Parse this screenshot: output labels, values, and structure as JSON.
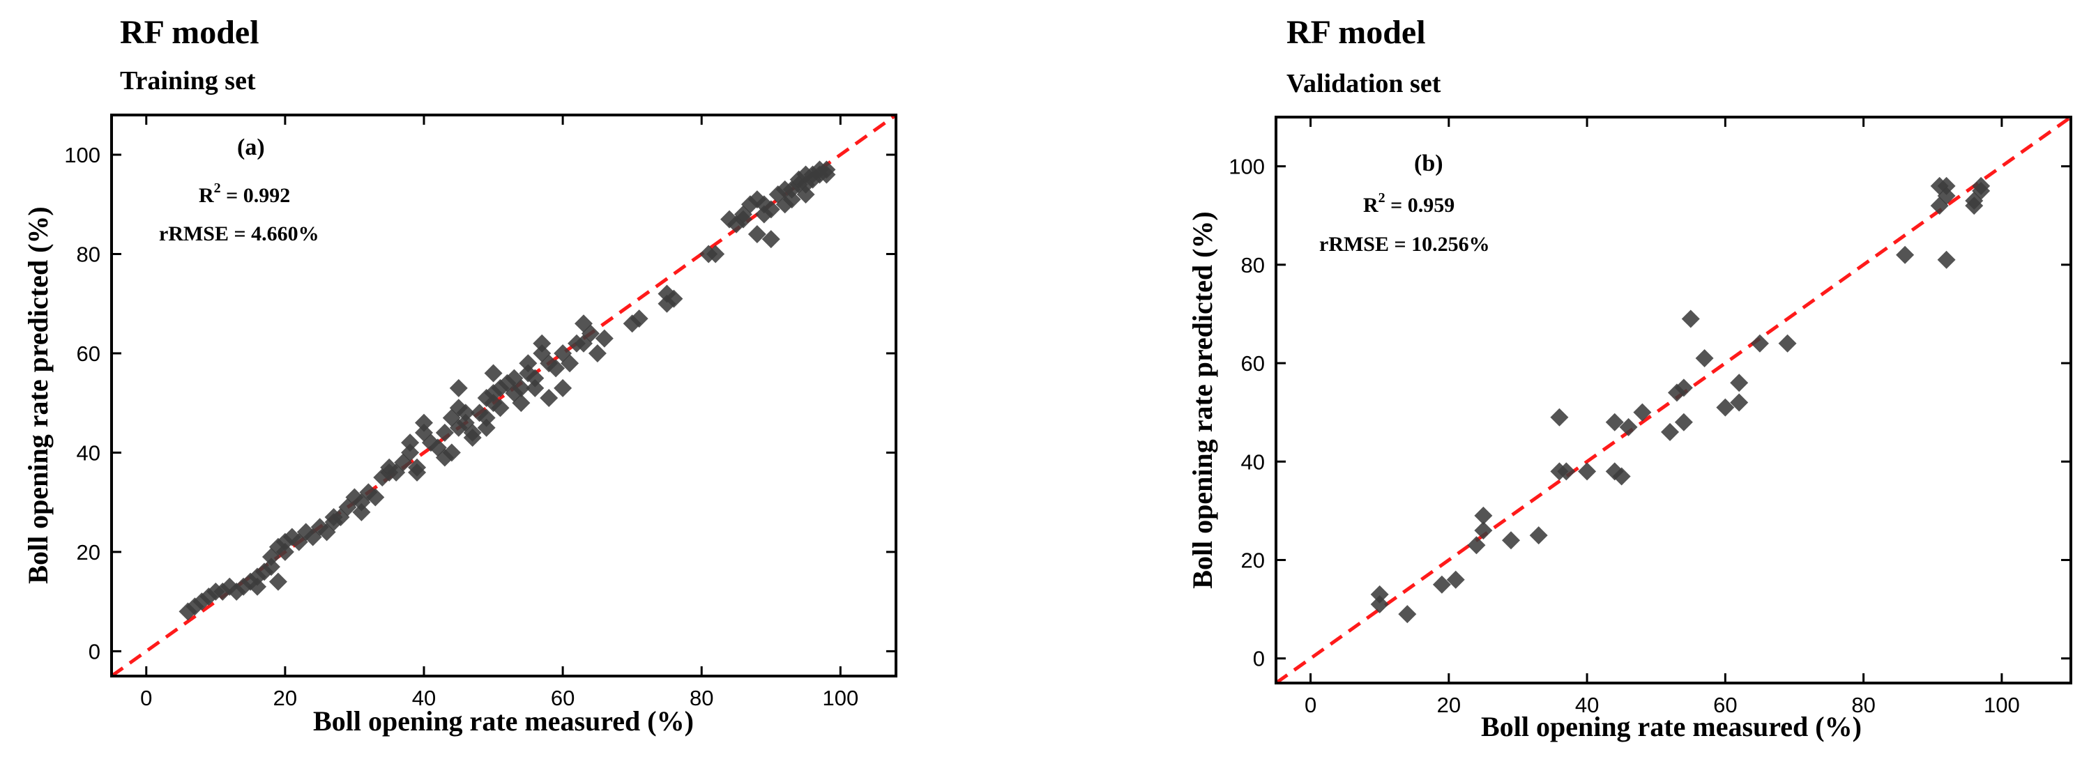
{
  "colors": {
    "points": "#3c3c3c",
    "reference_line": "#ff1a1a",
    "axes": "#000000"
  },
  "chart_data": [
    {
      "type": "scatter",
      "title": "RF model",
      "subtitle": "Training set",
      "panel_label": "(a)",
      "r2_label": "R",
      "r2_sup": "2",
      "r2_value": " = 0.992",
      "rrmse": "rRMSE = 4.660%",
      "xlabel": "Boll opening rate measured (%)",
      "ylabel": "Boll opening rate predicted (%)",
      "xlim": [
        -5,
        108
      ],
      "ylim": [
        -5,
        108
      ],
      "xticks": [
        0,
        20,
        40,
        60,
        80,
        100
      ],
      "yticks": [
        0,
        20,
        40,
        60,
        80,
        100
      ],
      "reference_line": "1:1",
      "marker": "diamond",
      "points": [
        [
          6,
          8
        ],
        [
          7,
          9
        ],
        [
          8,
          10
        ],
        [
          9,
          11
        ],
        [
          10,
          12
        ],
        [
          11,
          12
        ],
        [
          12,
          13
        ],
        [
          13,
          12
        ],
        [
          14,
          13
        ],
        [
          15,
          14
        ],
        [
          16,
          13
        ],
        [
          16,
          15
        ],
        [
          17,
          16
        ],
        [
          18,
          17
        ],
        [
          18,
          19
        ],
        [
          19,
          21
        ],
        [
          20,
          20
        ],
        [
          20,
          22
        ],
        [
          19,
          14
        ],
        [
          21,
          23
        ],
        [
          22,
          22
        ],
        [
          23,
          24
        ],
        [
          24,
          23
        ],
        [
          25,
          25
        ],
        [
          26,
          24
        ],
        [
          27,
          26
        ],
        [
          28,
          27
        ],
        [
          29,
          29
        ],
        [
          30,
          31
        ],
        [
          31,
          30
        ],
        [
          31,
          28
        ],
        [
          32,
          32
        ],
        [
          33,
          31
        ],
        [
          34,
          35
        ],
        [
          35,
          37
        ],
        [
          36,
          36
        ],
        [
          37,
          38
        ],
        [
          38,
          40
        ],
        [
          38,
          42
        ],
        [
          39,
          37
        ],
        [
          39,
          36
        ],
        [
          40,
          44
        ],
        [
          40,
          46
        ],
        [
          41,
          42
        ],
        [
          42,
          41
        ],
        [
          43,
          44
        ],
        [
          44,
          47
        ],
        [
          44,
          40
        ],
        [
          45,
          45
        ],
        [
          45,
          49
        ],
        [
          45,
          53
        ],
        [
          46,
          48
        ],
        [
          46,
          46
        ],
        [
          47,
          44
        ],
        [
          47,
          43
        ],
        [
          48,
          48
        ],
        [
          49,
          47
        ],
        [
          49,
          51
        ],
        [
          50,
          52
        ],
        [
          50,
          50
        ],
        [
          50,
          56
        ],
        [
          51,
          53
        ],
        [
          51,
          49
        ],
        [
          52,
          54
        ],
        [
          53,
          52
        ],
        [
          53,
          55
        ],
        [
          54,
          50
        ],
        [
          54,
          53
        ],
        [
          55,
          56
        ],
        [
          55,
          58
        ],
        [
          56,
          53
        ],
        [
          56,
          55
        ],
        [
          57,
          60
        ],
        [
          57,
          62
        ],
        [
          58,
          58
        ],
        [
          58,
          51
        ],
        [
          59,
          57
        ],
        [
          60,
          60
        ],
        [
          60,
          53
        ],
        [
          61,
          58
        ],
        [
          62,
          62
        ],
        [
          63,
          62
        ],
        [
          63,
          66
        ],
        [
          64,
          64
        ],
        [
          65,
          60
        ],
        [
          66,
          63
        ],
        [
          70,
          66
        ],
        [
          71,
          67
        ],
        [
          75,
          72
        ],
        [
          75,
          70
        ],
        [
          81,
          80
        ],
        [
          82,
          80
        ],
        [
          84,
          87
        ],
        [
          85,
          86
        ],
        [
          86,
          87
        ],
        [
          87,
          90
        ],
        [
          88,
          84
        ],
        [
          88,
          91
        ],
        [
          89,
          88
        ],
        [
          89,
          90
        ],
        [
          90,
          89
        ],
        [
          90,
          83
        ],
        [
          91,
          92
        ],
        [
          92,
          90
        ],
        [
          93,
          93
        ],
        [
          93,
          91
        ],
        [
          94,
          94
        ],
        [
          94,
          95
        ],
        [
          95,
          94
        ],
        [
          95,
          96
        ],
        [
          96,
          95
        ],
        [
          96,
          96
        ],
        [
          97,
          97
        ],
        [
          97,
          96
        ],
        [
          98,
          97
        ],
        [
          98,
          96
        ],
        [
          95,
          92
        ],
        [
          92,
          93
        ],
        [
          86,
          88
        ],
        [
          76,
          71
        ],
        [
          49,
          45
        ],
        [
          43,
          39
        ],
        [
          35,
          36
        ],
        [
          27,
          27
        ]
      ]
    },
    {
      "type": "scatter",
      "title": "RF model",
      "subtitle": "Validation  set",
      "panel_label": "(b)",
      "r2_label": "R",
      "r2_sup": "2",
      "r2_value": " = 0.959",
      "rrmse": "rRMSE = 10.256%",
      "xlabel": "Boll opening rate measured (%)",
      "ylabel": "Boll opening rate predicted (%)",
      "xlim": [
        -5,
        110
      ],
      "ylim": [
        -5,
        110
      ],
      "xticks": [
        0,
        20,
        40,
        60,
        80,
        100
      ],
      "yticks": [
        0,
        20,
        40,
        60,
        80,
        100
      ],
      "reference_line": "1:1",
      "marker": "diamond",
      "points": [
        [
          10,
          13
        ],
        [
          10,
          11
        ],
        [
          14,
          9
        ],
        [
          19,
          15
        ],
        [
          21,
          16
        ],
        [
          24,
          23
        ],
        [
          25,
          26
        ],
        [
          25,
          29
        ],
        [
          29,
          24
        ],
        [
          33,
          25
        ],
        [
          36,
          38
        ],
        [
          36,
          49
        ],
        [
          37,
          38
        ],
        [
          40,
          38
        ],
        [
          44,
          48
        ],
        [
          44,
          38
        ],
        [
          45,
          37
        ],
        [
          46,
          47
        ],
        [
          48,
          50
        ],
        [
          52,
          46
        ],
        [
          53,
          54
        ],
        [
          54,
          48
        ],
        [
          54,
          55
        ],
        [
          55,
          69
        ],
        [
          57,
          61
        ],
        [
          60,
          51
        ],
        [
          62,
          52
        ],
        [
          62,
          56
        ],
        [
          65,
          64
        ],
        [
          69,
          64
        ],
        [
          86,
          82
        ],
        [
          91,
          92
        ],
        [
          91,
          96
        ],
        [
          92,
          81
        ],
        [
          92,
          96
        ],
        [
          92,
          94
        ],
        [
          96,
          92
        ],
        [
          96,
          93
        ],
        [
          97,
          95
        ],
        [
          97,
          96
        ]
      ]
    }
  ]
}
